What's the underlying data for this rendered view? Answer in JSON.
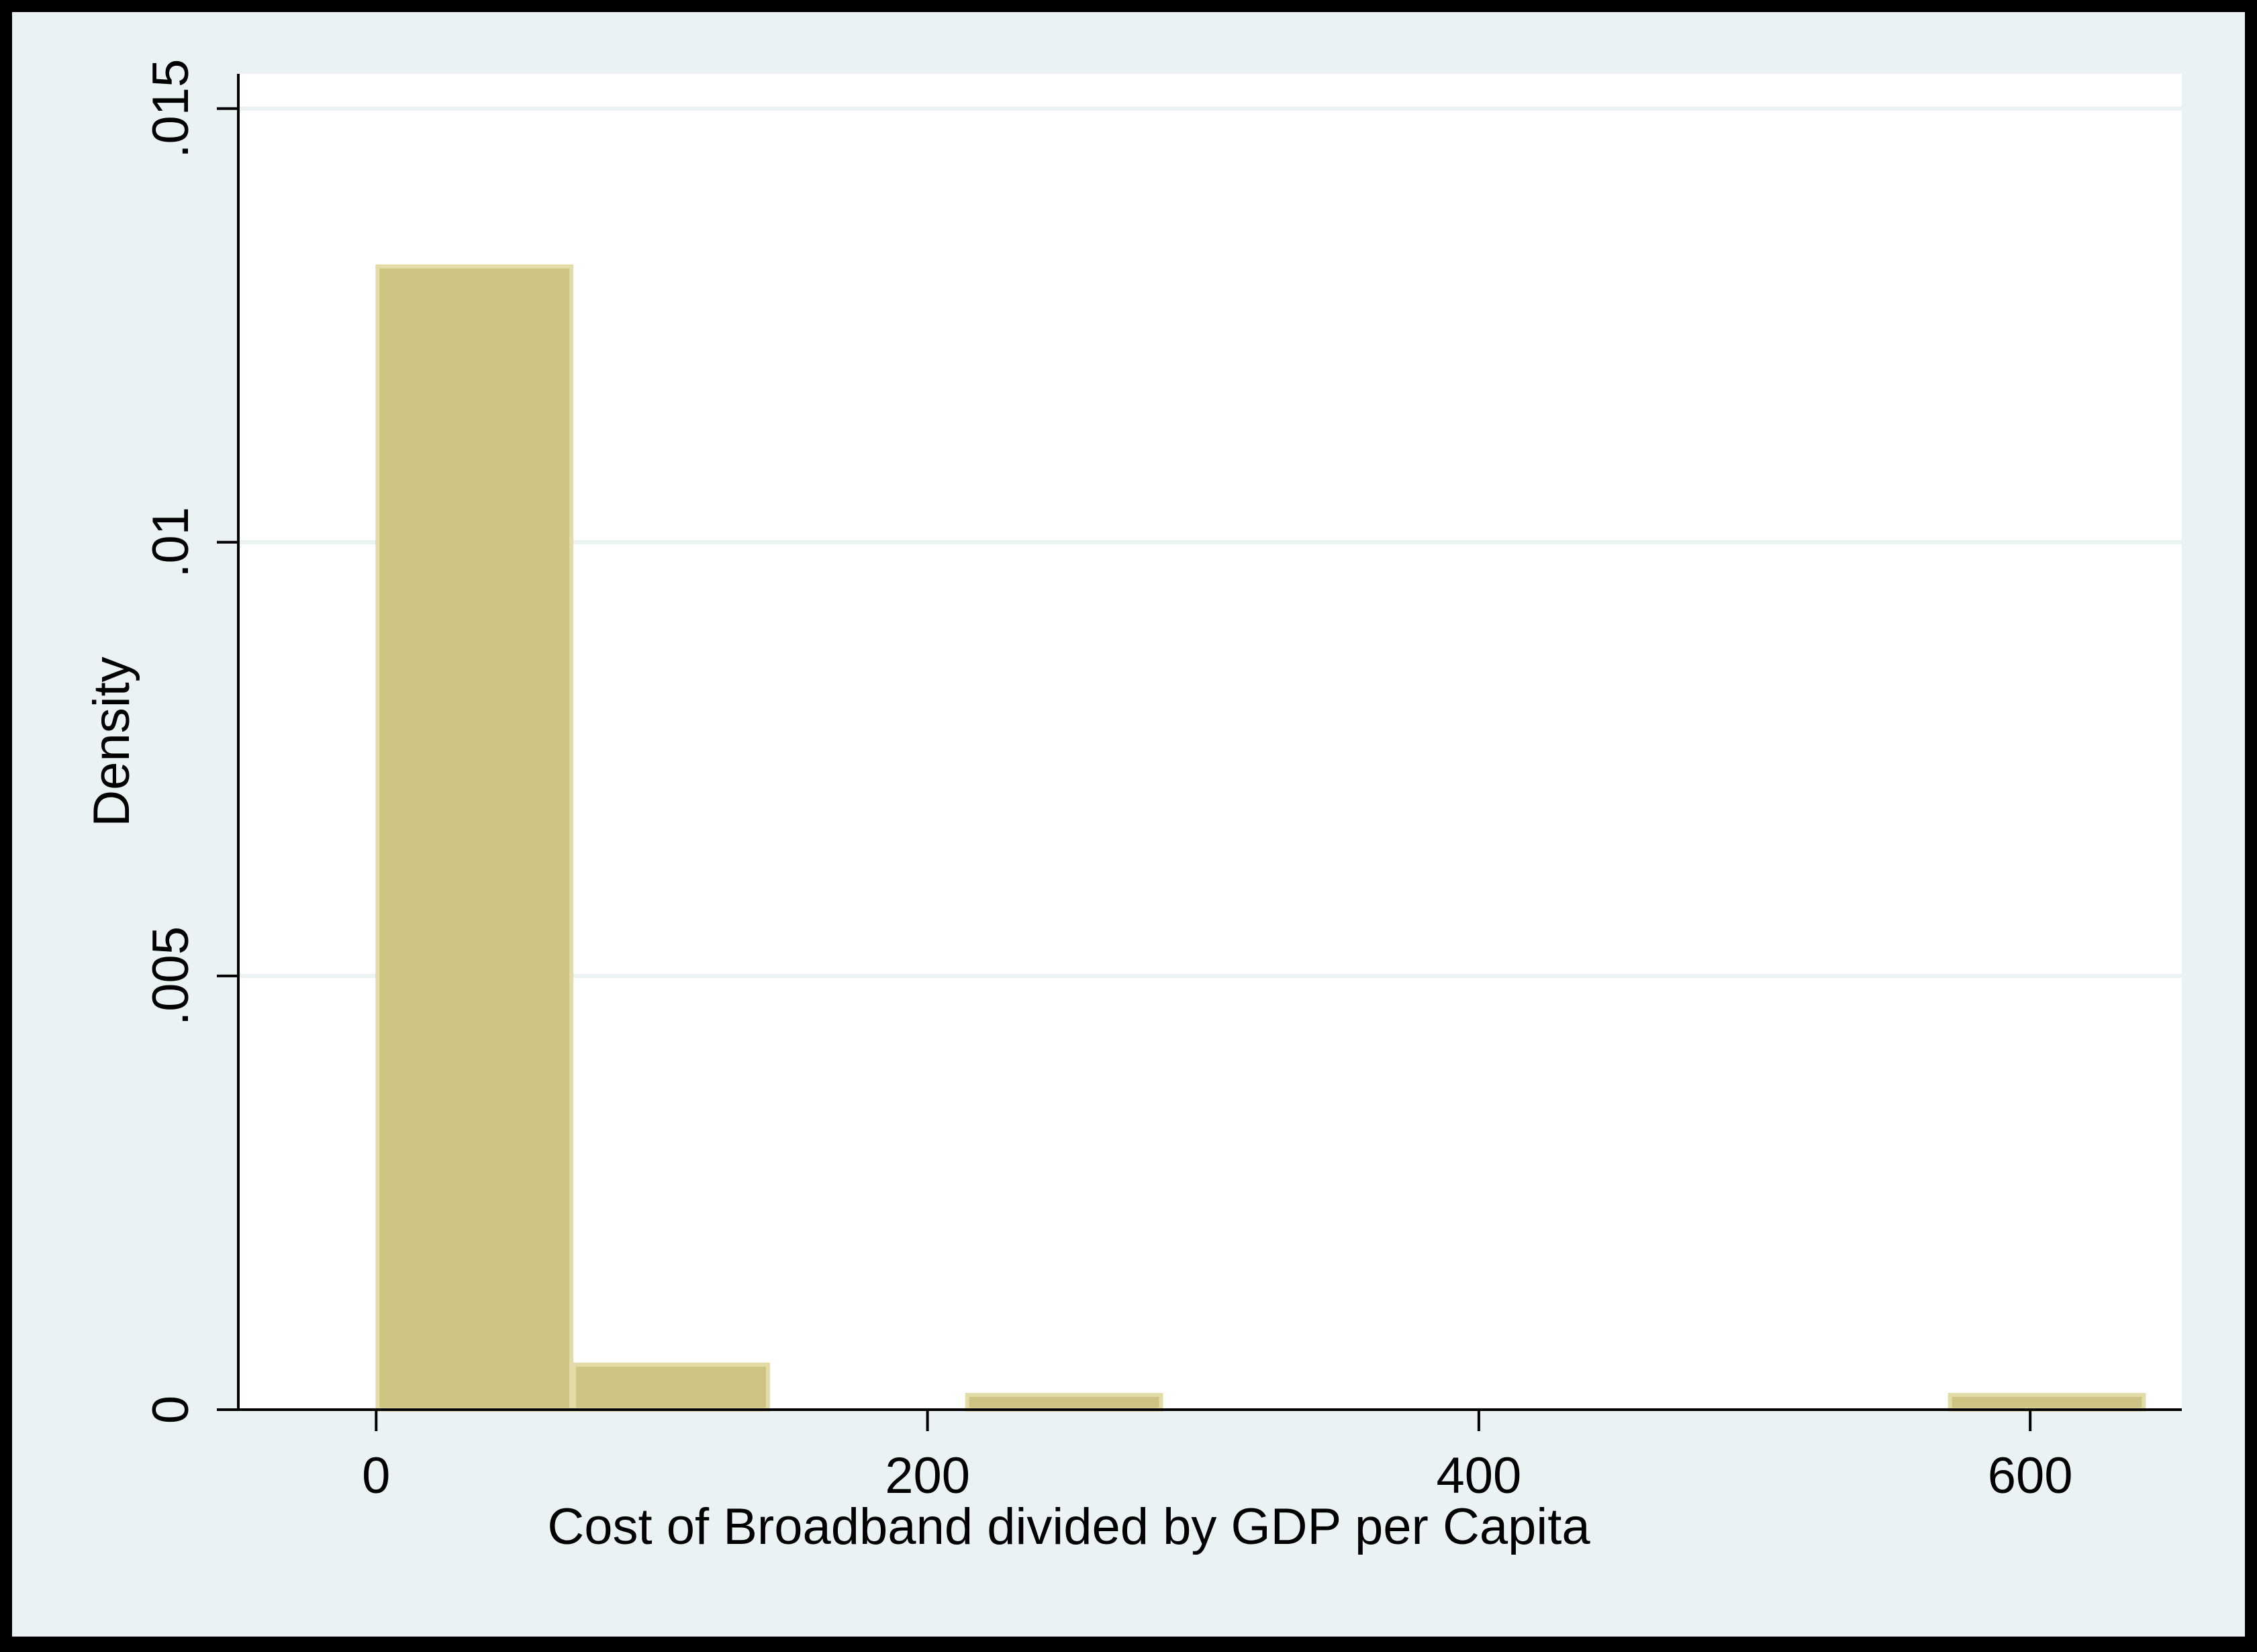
{
  "chart_data": {
    "type": "bar",
    "subtype": "histogram",
    "title": "",
    "xlabel": "Cost of Broadband divided by GDP per Capita",
    "ylabel": "Density",
    "xlim": [
      -50,
      655
    ],
    "ylim": [
      0,
      0.0154
    ],
    "x_ticks": [
      {
        "value": 0,
        "label": "0"
      },
      {
        "value": 200,
        "label": "200"
      },
      {
        "value": 400,
        "label": "400"
      },
      {
        "value": 600,
        "label": "600"
      }
    ],
    "y_ticks": [
      {
        "value": 0,
        "label": "0"
      },
      {
        "value": 0.005,
        "label": ".005"
      },
      {
        "value": 0.01,
        "label": ".01"
      },
      {
        "value": 0.015,
        "label": ".015"
      }
    ],
    "grid": true,
    "legend": "none",
    "bins": [
      {
        "x0": 0,
        "x1": 71.3,
        "value": 0.01318
      },
      {
        "x0": 71.3,
        "x1": 142.6,
        "value": 0.00052
      },
      {
        "x0": 142.6,
        "x1": 213.9,
        "value": 0
      },
      {
        "x0": 213.9,
        "x1": 285.2,
        "value": 0.00017
      },
      {
        "x0": 285.2,
        "x1": 356.5,
        "value": 0
      },
      {
        "x0": 356.5,
        "x1": 427.8,
        "value": 0
      },
      {
        "x0": 427.8,
        "x1": 499.1,
        "value": 0
      },
      {
        "x0": 499.1,
        "x1": 570.4,
        "value": 0
      },
      {
        "x0": 570.4,
        "x1": 641.7,
        "value": 0.00017
      }
    ],
    "colors": {
      "bar_fill": "#cdc484",
      "bar_stroke": "#e3dca8",
      "outer_background": "#eaf2f3",
      "plot_background": "#ffffff",
      "grid": "#eaf2f3",
      "axis": "#000000",
      "frame": "#000000"
    }
  }
}
